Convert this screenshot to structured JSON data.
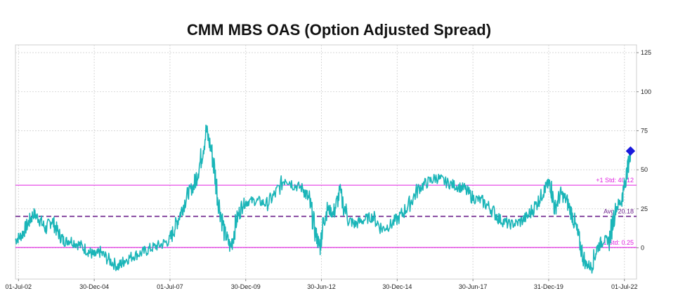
{
  "chart_data": {
    "type": "line",
    "title": "CMM MBS OAS (Option Adjusted Spread)",
    "xlabel": "",
    "ylabel": "",
    "x_tick_labels": [
      "01-Jul-02",
      "30-Dec-04",
      "01-Jul-07",
      "30-Dec-09",
      "30-Jun-12",
      "30-Dec-14",
      "30-Jun-17",
      "31-Dec-19",
      "01-Jul-22"
    ],
    "x_tick_years": [
      2002.5,
      2005.0,
      2007.5,
      2010.0,
      2012.5,
      2015.0,
      2017.5,
      2020.0,
      2022.5
    ],
    "xlim": [
      2002.4,
      2022.9
    ],
    "ylim": [
      -20,
      130
    ],
    "y_ticks": [
      0,
      25,
      50,
      75,
      100,
      125
    ],
    "grid": true,
    "series": [
      {
        "color": "#1ab5b8",
        "x": [
          2002.4,
          2002.6,
          2002.8,
          2003.0,
          2003.2,
          2003.4,
          2003.6,
          2003.8,
          2004.0,
          2004.2,
          2004.5,
          2004.8,
          2005.0,
          2005.2,
          2005.5,
          2005.8,
          2006.0,
          2006.3,
          2006.6,
          2006.9,
          2007.2,
          2007.5,
          2007.7,
          2007.9,
          2008.1,
          2008.3,
          2008.5,
          2008.7,
          2008.9,
          2009.1,
          2009.3,
          2009.5,
          2009.7,
          2009.9,
          2010.1,
          2010.4,
          2010.7,
          2011.0,
          2011.3,
          2011.6,
          2011.9,
          2012.1,
          2012.3,
          2012.45,
          2012.55,
          2012.7,
          2012.9,
          2013.1,
          2013.4,
          2013.6,
          2013.9,
          2014.2,
          2014.5,
          2014.8,
          2015.1,
          2015.4,
          2015.7,
          2016.0,
          2016.3,
          2016.6,
          2016.9,
          2017.2,
          2017.5,
          2017.8,
          2018.1,
          2018.4,
          2018.7,
          2019.0,
          2019.3,
          2019.6,
          2019.8,
          2019.95,
          2020.05,
          2020.2,
          2020.4,
          2020.6,
          2020.8,
          2021.0,
          2021.2,
          2021.4,
          2021.6,
          2021.8,
          2022.0,
          2022.2,
          2022.4,
          2022.5,
          2022.6,
          2022.7
        ],
        "y": [
          5,
          8,
          15,
          22,
          18,
          12,
          18,
          10,
          4,
          5,
          2,
          -2,
          -5,
          -3,
          -8,
          -12,
          -8,
          -5,
          -3,
          0,
          2,
          5,
          15,
          25,
          35,
          40,
          55,
          75,
          60,
          30,
          10,
          0,
          18,
          28,
          30,
          30,
          28,
          35,
          45,
          40,
          38,
          30,
          10,
          0,
          15,
          25,
          22,
          35,
          18,
          15,
          18,
          20,
          12,
          15,
          20,
          28,
          38,
          42,
          45,
          42,
          40,
          38,
          32,
          30,
          25,
          18,
          15,
          16,
          20,
          28,
          35,
          40,
          42,
          25,
          35,
          30,
          20,
          5,
          -10,
          -12,
          0,
          5,
          5,
          25,
          30,
          40,
          50,
          62
        ]
      }
    ],
    "reference_lines": [
      {
        "label": "+1 Std: 40.12",
        "value": 40.12,
        "color": "#e020e0",
        "style": "solid"
      },
      {
        "label": "Avg: 20.18",
        "value": 20.18,
        "color": "#6a1f8a",
        "style": "dashed"
      },
      {
        "label": "1 Std: 0.25",
        "value": 0.25,
        "color": "#e020e0",
        "style": "solid"
      }
    ],
    "last_value_marker": {
      "x": 2022.7,
      "y": 62,
      "color": "#1a1adc"
    }
  }
}
